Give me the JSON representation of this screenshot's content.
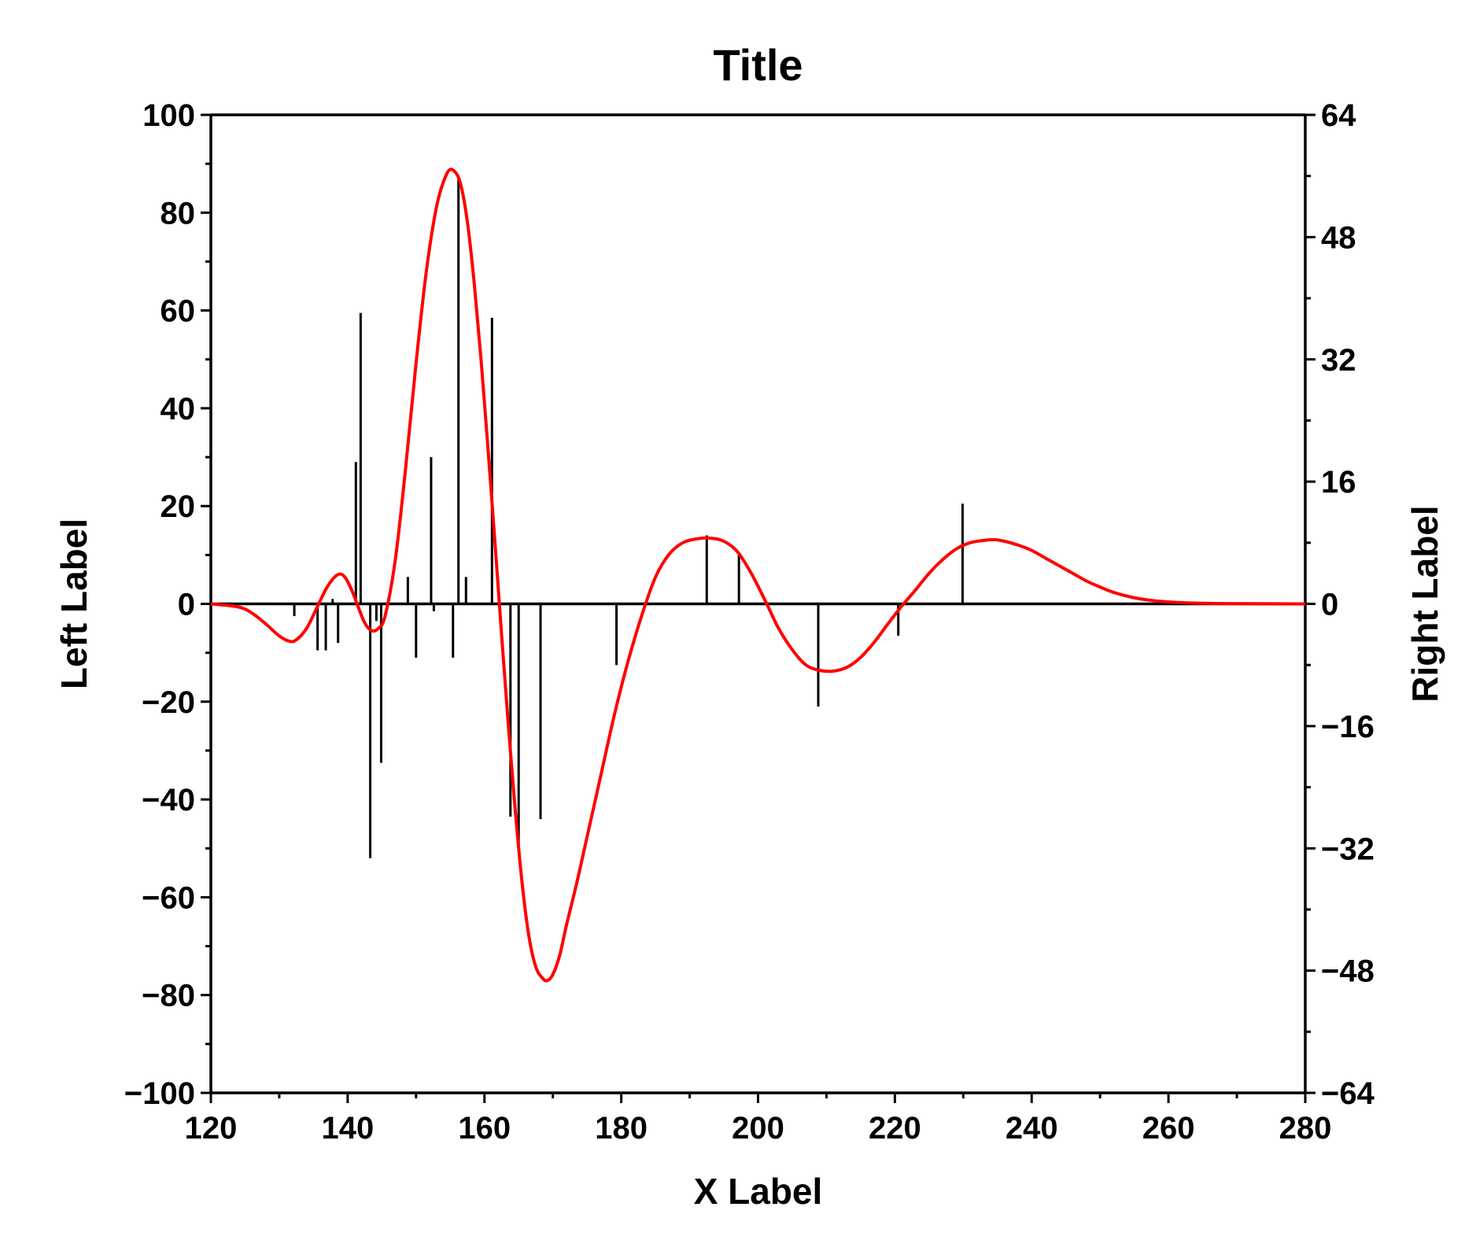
{
  "chart_data": {
    "type": "line",
    "title": "Title",
    "xlabel": "X Label",
    "ylabel_left": "Left Label",
    "ylabel_right": "Right Label",
    "xlim": [
      120,
      280
    ],
    "ylim_left": [
      -100,
      100
    ],
    "ylim_right": [
      -64,
      64
    ],
    "x_ticks": [
      "120",
      "140",
      "160",
      "180",
      "200",
      "220",
      "240",
      "260",
      "280"
    ],
    "y_left_ticks": [
      "100",
      "80",
      "60",
      "40",
      "20",
      "0",
      "−20",
      "−40",
      "−60",
      "−80",
      "−100"
    ],
    "y_right_ticks": [
      "64",
      "48",
      "32",
      "16",
      "0",
      "−16",
      "−32",
      "−48",
      "−64"
    ],
    "grid": false,
    "legend": "none",
    "series": [
      {
        "kind": "sticks",
        "axis": "left",
        "color": "#000000",
        "x": [
          132.2,
          135.6,
          136.8,
          137.8,
          138.6,
          141.2,
          141.9,
          143.3,
          144.2,
          144.9,
          148.8,
          150.0,
          152.2,
          152.6,
          155.4,
          156.2,
          157.3,
          161.1,
          163.8,
          165.0,
          168.2,
          179.3,
          192.5,
          197.2,
          208.8,
          220.5,
          229.9
        ],
        "values": [
          -2.5,
          -9.5,
          -9.5,
          1.0,
          -8.0,
          29.0,
          59.5,
          -52.0,
          -3.5,
          -32.5,
          5.5,
          -11.0,
          30.0,
          -1.5,
          -11.0,
          87.0,
          5.5,
          58.5,
          -43.5,
          -50.5,
          -44.0,
          -12.5,
          14.0,
          10.0,
          -21.0,
          -6.5,
          20.5
        ]
      },
      {
        "kind": "curve",
        "axis": "right",
        "color": "#ff0000",
        "x": [
          120,
          124,
          126,
          128,
          130,
          131.5,
          132.5,
          134,
          135.5,
          137,
          138.5,
          139.5,
          140.5,
          141.5,
          142.5,
          143.5,
          144.5,
          145.5,
          147,
          148.5,
          150,
          151.5,
          153,
          154.5,
          155.5,
          156.5,
          157.5,
          158.5,
          159.5,
          160.5,
          161.5,
          162.5,
          163.5,
          164.5,
          165.5,
          166.5,
          167.5,
          168.5,
          169.2,
          170,
          171,
          172,
          173.5,
          175,
          177,
          179,
          181,
          183,
          185,
          187,
          189,
          191,
          193,
          195,
          197,
          199,
          201,
          203,
          205,
          207,
          209,
          211,
          213,
          215,
          217,
          219,
          221,
          223,
          225,
          227,
          229,
          231,
          233,
          234.5,
          236,
          238,
          240,
          242,
          244,
          246,
          248,
          250,
          252,
          255,
          258,
          261,
          264,
          268,
          272,
          276,
          280
        ],
        "values": [
          0,
          -0.4,
          -1.2,
          -2.6,
          -4.2,
          -4.9,
          -4.7,
          -3.2,
          -0.5,
          2.2,
          3.8,
          3.6,
          2.0,
          -0.3,
          -2.5,
          -3.5,
          -3.2,
          -1.5,
          6.0,
          18.0,
          31.5,
          43.5,
          52.0,
          56.3,
          56.7,
          55.0,
          50.0,
          42.0,
          32.0,
          20.5,
          8.5,
          -4.0,
          -16.0,
          -27.0,
          -36.5,
          -43.5,
          -47.5,
          -49.0,
          -49.3,
          -48.5,
          -46.0,
          -42.0,
          -36.5,
          -30.5,
          -22.5,
          -14.5,
          -7.5,
          -1.5,
          3.5,
          6.5,
          8.0,
          8.5,
          8.6,
          8.2,
          6.8,
          4.0,
          0.5,
          -3.2,
          -6.0,
          -8.0,
          -8.7,
          -8.8,
          -8.3,
          -7.0,
          -5.0,
          -2.6,
          -0.3,
          1.8,
          4.0,
          5.8,
          7.2,
          8.0,
          8.3,
          8.4,
          8.2,
          7.7,
          7.0,
          6.0,
          5.0,
          4.0,
          3.0,
          2.2,
          1.5,
          0.8,
          0.4,
          0.2,
          0.1,
          0.04,
          0.02,
          0.01,
          0
        ]
      }
    ]
  }
}
